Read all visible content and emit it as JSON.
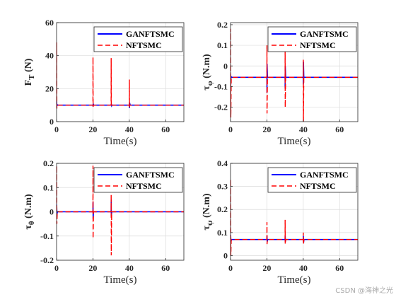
{
  "watermark": "CSDN @海神之光",
  "colors": {
    "ganftsmc": "#0000ff",
    "nftsmc": "#ff0000"
  },
  "chart_data": [
    {
      "type": "line",
      "xlabel": "Time(s)",
      "ylabel": "F_T (N)",
      "ylabel_main": "F",
      "ylabel_sub": "T",
      "ylabel_unit": " (N)",
      "xlim": [
        0,
        70
      ],
      "ylim": [
        0,
        60
      ],
      "xticks": [
        0,
        20,
        40,
        60
      ],
      "yticks": [
        0,
        20,
        40,
        60
      ],
      "ytick_labels": [
        "0",
        "20",
        "40",
        "60"
      ],
      "grid": true,
      "legend_position": "top-right",
      "baseline": 10,
      "series": [
        {
          "name": "GANFTSMC",
          "style": "solid",
          "color": "#0000ff",
          "points": [
            [
              0,
              10
            ],
            [
              0.05,
              13
            ],
            [
              0.15,
              9.4
            ],
            [
              0.4,
              10.3
            ],
            [
              1,
              10
            ],
            [
              20,
              10
            ],
            [
              20.05,
              9.2
            ],
            [
              20.2,
              10.6
            ],
            [
              20.5,
              10
            ],
            [
              30,
              10
            ],
            [
              30.1,
              10.8
            ],
            [
              30.3,
              9.6
            ],
            [
              30.5,
              10
            ],
            [
              40,
              10
            ],
            [
              40.05,
              8.2
            ],
            [
              40.15,
              11.5
            ],
            [
              40.5,
              10
            ],
            [
              70,
              10
            ]
          ]
        },
        {
          "name": "NFTSMC",
          "style": "dashed",
          "color": "#ff0000",
          "points": [
            [
              0,
              10
            ],
            [
              0.05,
              48
            ],
            [
              0.15,
              8
            ],
            [
              0.6,
              10
            ],
            [
              20,
              10
            ],
            [
              20.03,
              39
            ],
            [
              20.1,
              9
            ],
            [
              20.3,
              10
            ],
            [
              30,
              10
            ],
            [
              30.03,
              38.5
            ],
            [
              30.1,
              9
            ],
            [
              30.3,
              10
            ],
            [
              40,
              10
            ],
            [
              40.03,
              25.5
            ],
            [
              40.1,
              8.8
            ],
            [
              40.3,
              10
            ],
            [
              70,
              10
            ]
          ]
        }
      ]
    },
    {
      "type": "line",
      "xlabel": "Time(s)",
      "ylabel": "τ_φ (N.m)",
      "ylabel_main": "τ",
      "ylabel_sub": "φ",
      "ylabel_unit": " (N.m)",
      "xlim": [
        0,
        70
      ],
      "ylim": [
        -0.27,
        0.21
      ],
      "xticks": [
        0,
        20,
        40,
        60
      ],
      "yticks": [
        -0.2,
        -0.1,
        0,
        0.1,
        0.2
      ],
      "ytick_labels": [
        "-0.2",
        "-0.1",
        "0",
        "0.1",
        "0.2"
      ],
      "grid": true,
      "legend_position": "top-right",
      "baseline": -0.055,
      "series": [
        {
          "name": "GANFTSMC",
          "style": "solid",
          "color": "#0000ff",
          "points": [
            [
              0,
              -0.055
            ],
            [
              0.05,
              -0.12
            ],
            [
              0.2,
              -0.05
            ],
            [
              0.5,
              -0.055
            ],
            [
              20,
              -0.055
            ],
            [
              20.05,
              -0.13
            ],
            [
              20.1,
              0.01
            ],
            [
              20.3,
              -0.055
            ],
            [
              30,
              -0.055
            ],
            [
              30.05,
              -0.11
            ],
            [
              30.1,
              0.0
            ],
            [
              30.3,
              -0.055
            ],
            [
              40,
              -0.055
            ],
            [
              40.05,
              -0.09
            ],
            [
              40.1,
              0.02
            ],
            [
              40.3,
              -0.055
            ],
            [
              70,
              -0.055
            ]
          ]
        },
        {
          "name": "NFTSMC",
          "style": "dashed",
          "color": "#ff0000",
          "points": [
            [
              0,
              -0.055
            ],
            [
              0.05,
              0.18
            ],
            [
              0.15,
              -0.25
            ],
            [
              0.4,
              -0.055
            ],
            [
              20,
              -0.055
            ],
            [
              20.03,
              0.1
            ],
            [
              20.08,
              -0.23
            ],
            [
              20.3,
              -0.055
            ],
            [
              30,
              -0.055
            ],
            [
              30.03,
              0.09
            ],
            [
              30.08,
              -0.2
            ],
            [
              30.3,
              -0.055
            ],
            [
              40,
              -0.055
            ],
            [
              40.03,
              0.03
            ],
            [
              40.08,
              -0.27
            ],
            [
              40.3,
              -0.055
            ],
            [
              70,
              -0.055
            ]
          ]
        }
      ]
    },
    {
      "type": "line",
      "xlabel": "Time(s)",
      "ylabel": "τ_θ (N.m)",
      "ylabel_main": "τ",
      "ylabel_sub": "θ",
      "ylabel_unit": " (N.m)",
      "xlim": [
        0,
        70
      ],
      "ylim": [
        -0.2,
        0.2
      ],
      "xticks": [
        0,
        20,
        40,
        60
      ],
      "yticks": [
        -0.2,
        -0.1,
        0,
        0.1,
        0.2
      ],
      "ytick_labels": [
        "-0.2",
        "-0.1",
        "0",
        "0.1",
        "0.2"
      ],
      "grid": true,
      "legend_position": "top-right",
      "baseline": 0,
      "series": [
        {
          "name": "GANFTSMC",
          "style": "solid",
          "color": "#0000ff",
          "points": [
            [
              0,
              0
            ],
            [
              0.05,
              0.03
            ],
            [
              0.2,
              -0.01
            ],
            [
              0.5,
              0
            ],
            [
              20,
              0
            ],
            [
              20.05,
              0.04
            ],
            [
              20.1,
              -0.03
            ],
            [
              20.3,
              0
            ],
            [
              30,
              0
            ],
            [
              30.05,
              0.05
            ],
            [
              30.1,
              -0.02
            ],
            [
              30.3,
              0
            ],
            [
              70,
              0
            ]
          ]
        },
        {
          "name": "NFTSMC",
          "style": "dashed",
          "color": "#ff0000",
          "points": [
            [
              0,
              0
            ],
            [
              0.05,
              0.19
            ],
            [
              0.15,
              -0.05
            ],
            [
              0.4,
              0
            ],
            [
              20,
              0
            ],
            [
              20.03,
              0.19
            ],
            [
              20.08,
              -0.11
            ],
            [
              20.3,
              0
            ],
            [
              30,
              0
            ],
            [
              30.03,
              0.07
            ],
            [
              30.08,
              -0.18
            ],
            [
              30.3,
              0
            ],
            [
              70,
              0
            ]
          ]
        }
      ]
    },
    {
      "type": "line",
      "xlabel": "Time(s)",
      "ylabel": "τ_ψ (N.m)",
      "ylabel_main": "τ",
      "ylabel_sub": "ψ",
      "ylabel_unit": " (N.m)",
      "xlim": [
        0,
        70
      ],
      "ylim": [
        -0.02,
        0.4
      ],
      "xticks": [
        0,
        20,
        40,
        60
      ],
      "yticks": [
        0,
        0.1,
        0.2,
        0.3,
        0.4
      ],
      "ytick_labels": [
        "0",
        "0.1",
        "0.2",
        "0.3",
        "0.4"
      ],
      "grid": true,
      "legend_position": "top-right",
      "baseline": 0.07,
      "series": [
        {
          "name": "GANFTSMC",
          "style": "solid",
          "color": "#0000ff",
          "points": [
            [
              0,
              0.07
            ],
            [
              0.05,
              0.09
            ],
            [
              0.2,
              0.06
            ],
            [
              0.5,
              0.07
            ],
            [
              20,
              0.07
            ],
            [
              20.05,
              0.085
            ],
            [
              20.15,
              0.06
            ],
            [
              20.4,
              0.07
            ],
            [
              30,
              0.07
            ],
            [
              30.05,
              0.085
            ],
            [
              30.15,
              0.06
            ],
            [
              30.4,
              0.07
            ],
            [
              40,
              0.07
            ],
            [
              40.05,
              0.085
            ],
            [
              40.15,
              0.055
            ],
            [
              40.4,
              0.07
            ],
            [
              70,
              0.07
            ]
          ]
        },
        {
          "name": "NFTSMC",
          "style": "dashed",
          "color": "#ff0000",
          "points": [
            [
              0,
              0.07
            ],
            [
              0.05,
              0.33
            ],
            [
              0.15,
              0.0
            ],
            [
              0.4,
              0.07
            ],
            [
              20,
              0.07
            ],
            [
              20.03,
              0.145
            ],
            [
              20.08,
              0.05
            ],
            [
              20.3,
              0.07
            ],
            [
              30,
              0.07
            ],
            [
              30.03,
              0.155
            ],
            [
              30.08,
              0.05
            ],
            [
              30.3,
              0.07
            ],
            [
              40,
              0.07
            ],
            [
              40.03,
              0.1
            ],
            [
              40.08,
              0.05
            ],
            [
              40.3,
              0.07
            ],
            [
              70,
              0.07
            ]
          ]
        }
      ]
    }
  ]
}
